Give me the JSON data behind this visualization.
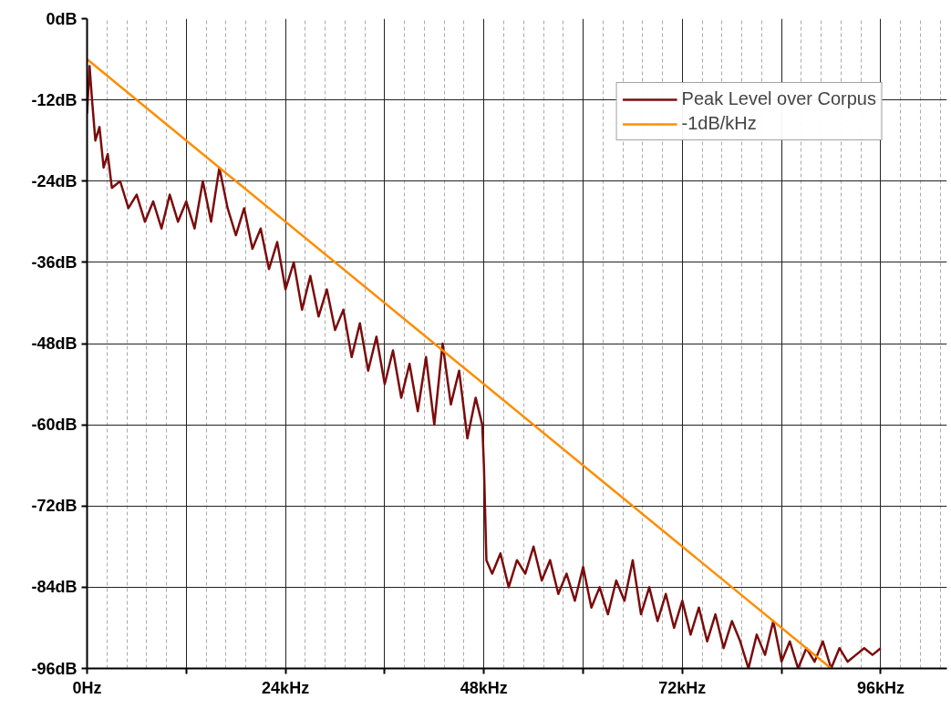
{
  "chart_data": {
    "type": "line",
    "xlim": [
      0,
      104
    ],
    "ylim": [
      -96,
      0
    ],
    "xticks": [
      {
        "value": 0,
        "label": "0Hz"
      },
      {
        "value": 12,
        "label": null
      },
      {
        "value": 24,
        "label": "24kHz"
      },
      {
        "value": 36,
        "label": null
      },
      {
        "value": 48,
        "label": "48kHz"
      },
      {
        "value": 60,
        "label": null
      },
      {
        "value": 72,
        "label": "72kHz"
      },
      {
        "value": 84,
        "label": null
      },
      {
        "value": 96,
        "label": "96kHz"
      }
    ],
    "yticks": [
      {
        "value": -96,
        "label": "-96dB"
      },
      {
        "value": -84,
        "label": "-84dB"
      },
      {
        "value": -72,
        "label": "-72dB"
      },
      {
        "value": -60,
        "label": "-60dB"
      },
      {
        "value": -48,
        "label": "-48dB"
      },
      {
        "value": -36,
        "label": "-36dB"
      },
      {
        "value": -24,
        "label": "-24dB"
      },
      {
        "value": -12,
        "label": "-12dB"
      },
      {
        "value": 0,
        "label": "0dB"
      }
    ],
    "grid": true,
    "legend": "top right",
    "marker": "none",
    "line_style": "solid",
    "series": [
      {
        "name": "Peak Level over Corpus",
        "color": "#7b0c0c",
        "x": [
          0,
          0.3,
          0.6,
          1,
          1.5,
          2,
          2.5,
          3,
          4,
          5,
          6,
          7,
          8,
          9,
          10,
          11,
          12,
          13,
          14,
          15,
          16,
          17,
          18,
          19,
          20,
          21,
          22,
          23,
          24,
          25,
          26,
          27,
          28,
          29,
          30,
          31,
          32,
          33,
          34,
          35,
          36,
          37,
          38,
          39,
          40,
          41,
          42,
          43,
          44,
          45,
          46,
          47,
          47.8,
          48,
          48.3,
          49,
          50,
          51,
          52,
          53,
          54,
          55,
          56,
          57,
          58,
          59,
          60,
          61,
          62,
          63,
          64,
          65,
          66,
          67,
          68,
          69,
          70,
          71,
          72,
          73,
          74,
          75,
          76,
          77,
          78,
          79,
          80,
          81,
          82,
          83,
          84,
          85,
          86,
          87,
          88,
          89,
          90,
          91,
          92,
          93,
          94,
          95,
          96
        ],
        "values": [
          -14,
          -7,
          -12,
          -18,
          -16,
          -22,
          -20,
          -25,
          -24,
          -28,
          -26,
          -30,
          -27,
          -31,
          -26,
          -30,
          -27,
          -31,
          -24,
          -30,
          -22,
          -28,
          -32,
          -28,
          -34,
          -31,
          -37,
          -33,
          -40,
          -36,
          -43,
          -38,
          -44,
          -40,
          -46,
          -43,
          -50,
          -45,
          -52,
          -47,
          -54,
          -49,
          -56,
          -51,
          -58,
          -50,
          -60,
          -48,
          -57,
          -52,
          -62,
          -56,
          -60,
          -66,
          -80,
          -82,
          -79,
          -84,
          -80,
          -82,
          -78,
          -83,
          -80,
          -85,
          -82,
          -86,
          -81,
          -87,
          -84,
          -88,
          -83,
          -86,
          -80,
          -88,
          -84,
          -89,
          -85,
          -90,
          -86,
          -91,
          -87,
          -92,
          -88,
          -93,
          -89,
          -92,
          -96,
          -91,
          -94,
          -89,
          -95,
          -92,
          -96,
          -93,
          -95,
          -92,
          -96,
          -93,
          -95,
          -94,
          -93,
          -94,
          -93
        ]
      },
      {
        "name": "-1dB/kHz",
        "color": "#ff8c00",
        "x": [
          0,
          90
        ],
        "values": [
          -6,
          -96
        ]
      }
    ]
  }
}
